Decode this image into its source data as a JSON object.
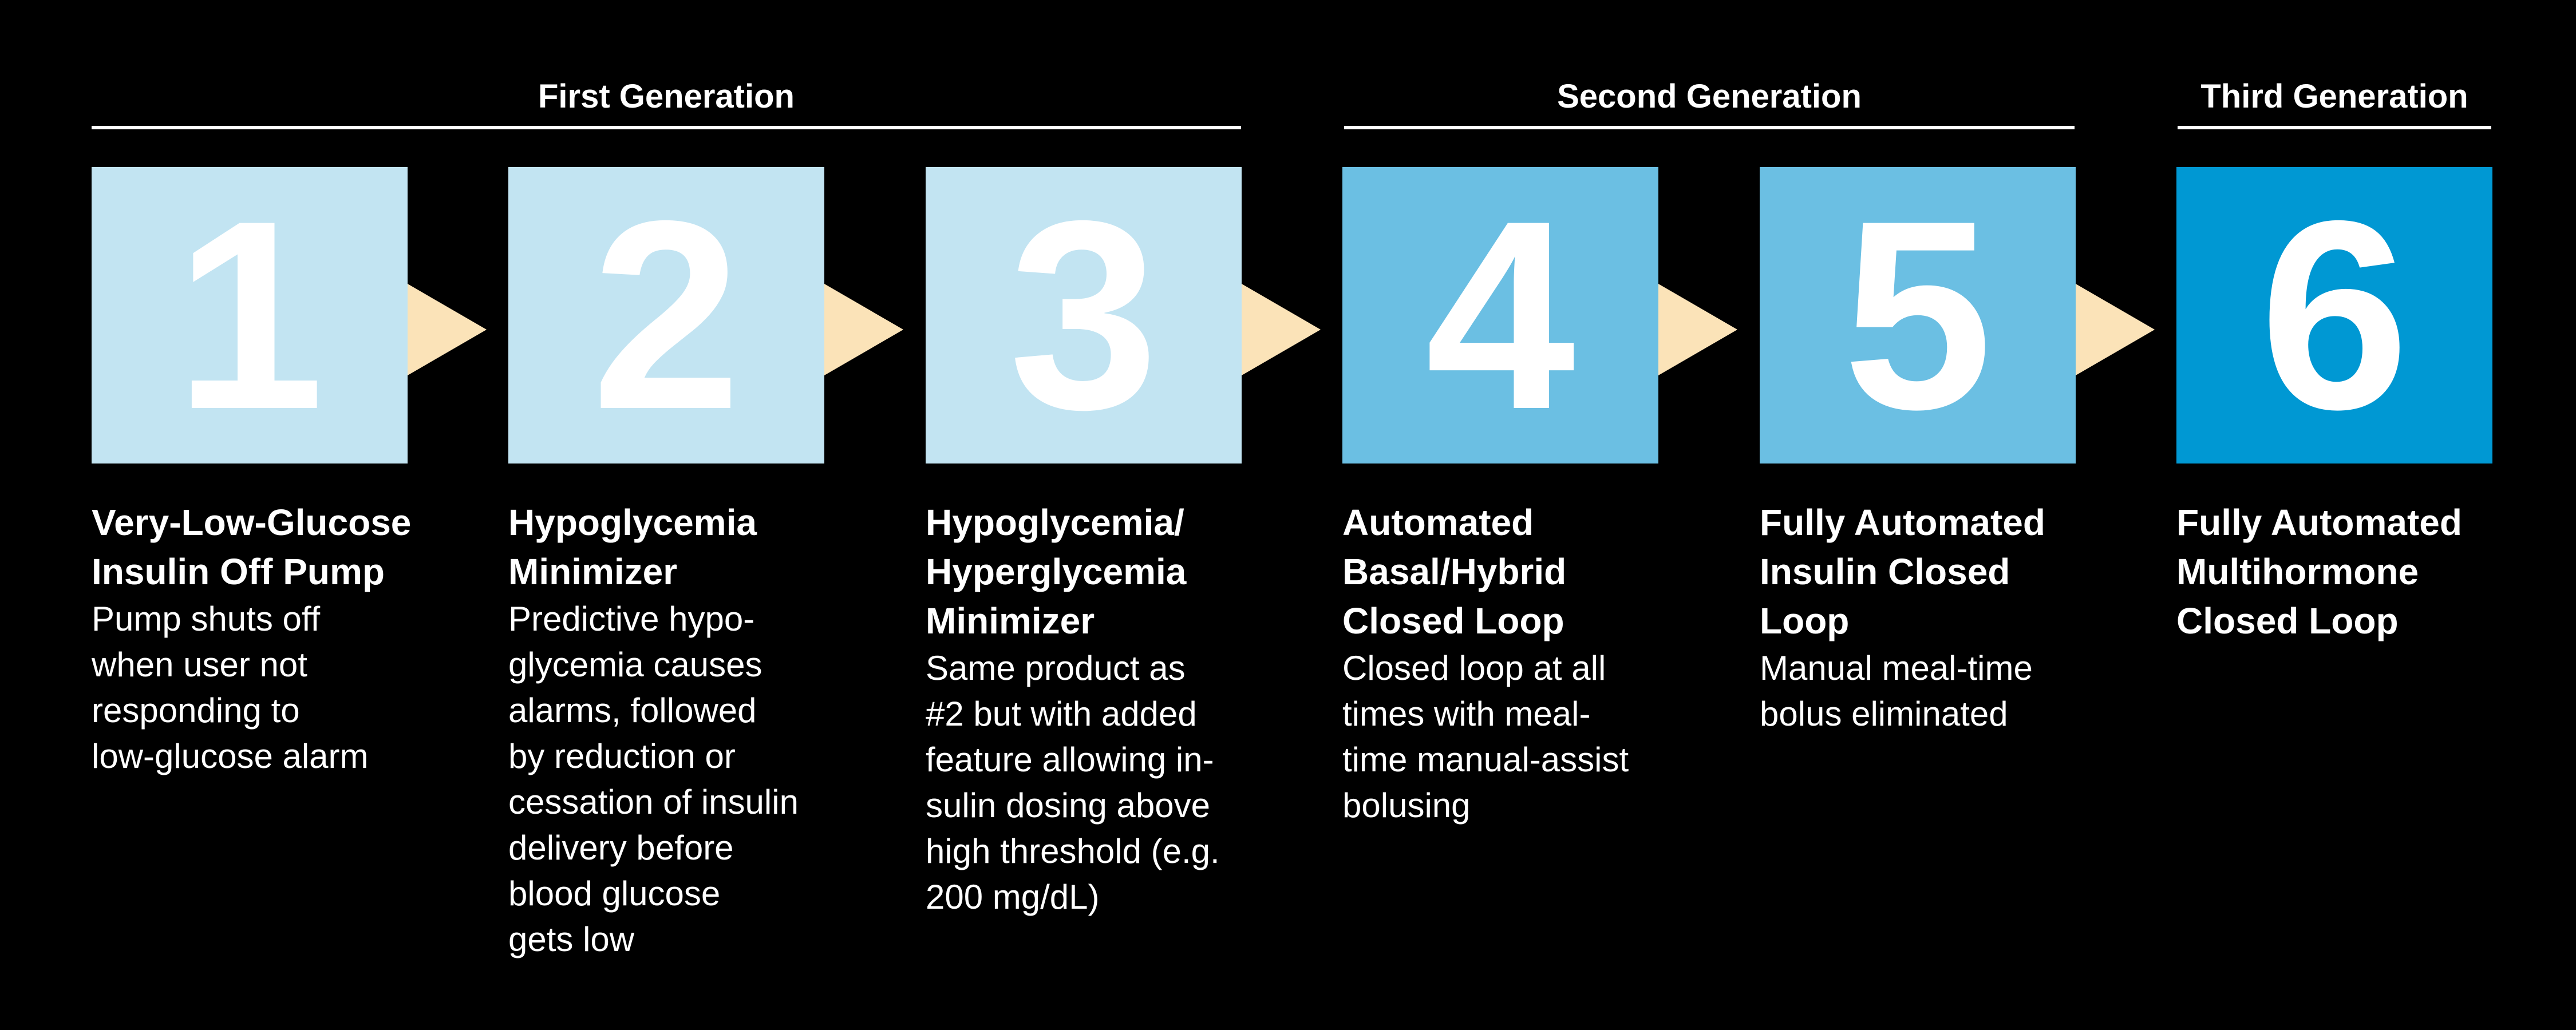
{
  "generations": [
    {
      "label": "First Generation"
    },
    {
      "label": "Second Generation"
    },
    {
      "label": "Third Generation"
    }
  ],
  "steps": [
    {
      "number": "1",
      "title": "Very-Low-Glucose\nInsulin Off Pump",
      "body": "Pump shuts off\nwhen user not\nresponding to\nlow-glucose alarm",
      "color": "#c2e4f2"
    },
    {
      "number": "2",
      "title": "Hypoglycemia\nMinimizer",
      "body": "Predictive hypo-\nglycemia causes\nalarms, followed\nby reduction or\ncessation of insulin\ndelivery before\nblood glucose\ngets low",
      "color": "#c2e4f2"
    },
    {
      "number": "3",
      "title": "Hypoglycemia/\nHyperglycemia\nMinimizer",
      "body": "Same product as\n#2 but with added\nfeature allowing in-\nsulin dosing above\nhigh threshold (e.g.\n200 mg/dL)",
      "color": "#c2e4f2"
    },
    {
      "number": "4",
      "title": "Automated\nBasal/Hybrid\nClosed Loop",
      "body": "Closed loop at all\ntimes with meal-\ntime manual-assist\nbolusing",
      "color": "#6bbfe3"
    },
    {
      "number": "5",
      "title": "Fully Automated\nInsulin Closed\nLoop",
      "body": "Manual meal-time\nbolus eliminated",
      "color": "#6bbfe3"
    },
    {
      "number": "6",
      "title": "Fully Automated\nMultihormone\nClosed Loop",
      "body": "",
      "color": "#0098d3"
    }
  ],
  "arrow_color": "#fbe3b8"
}
